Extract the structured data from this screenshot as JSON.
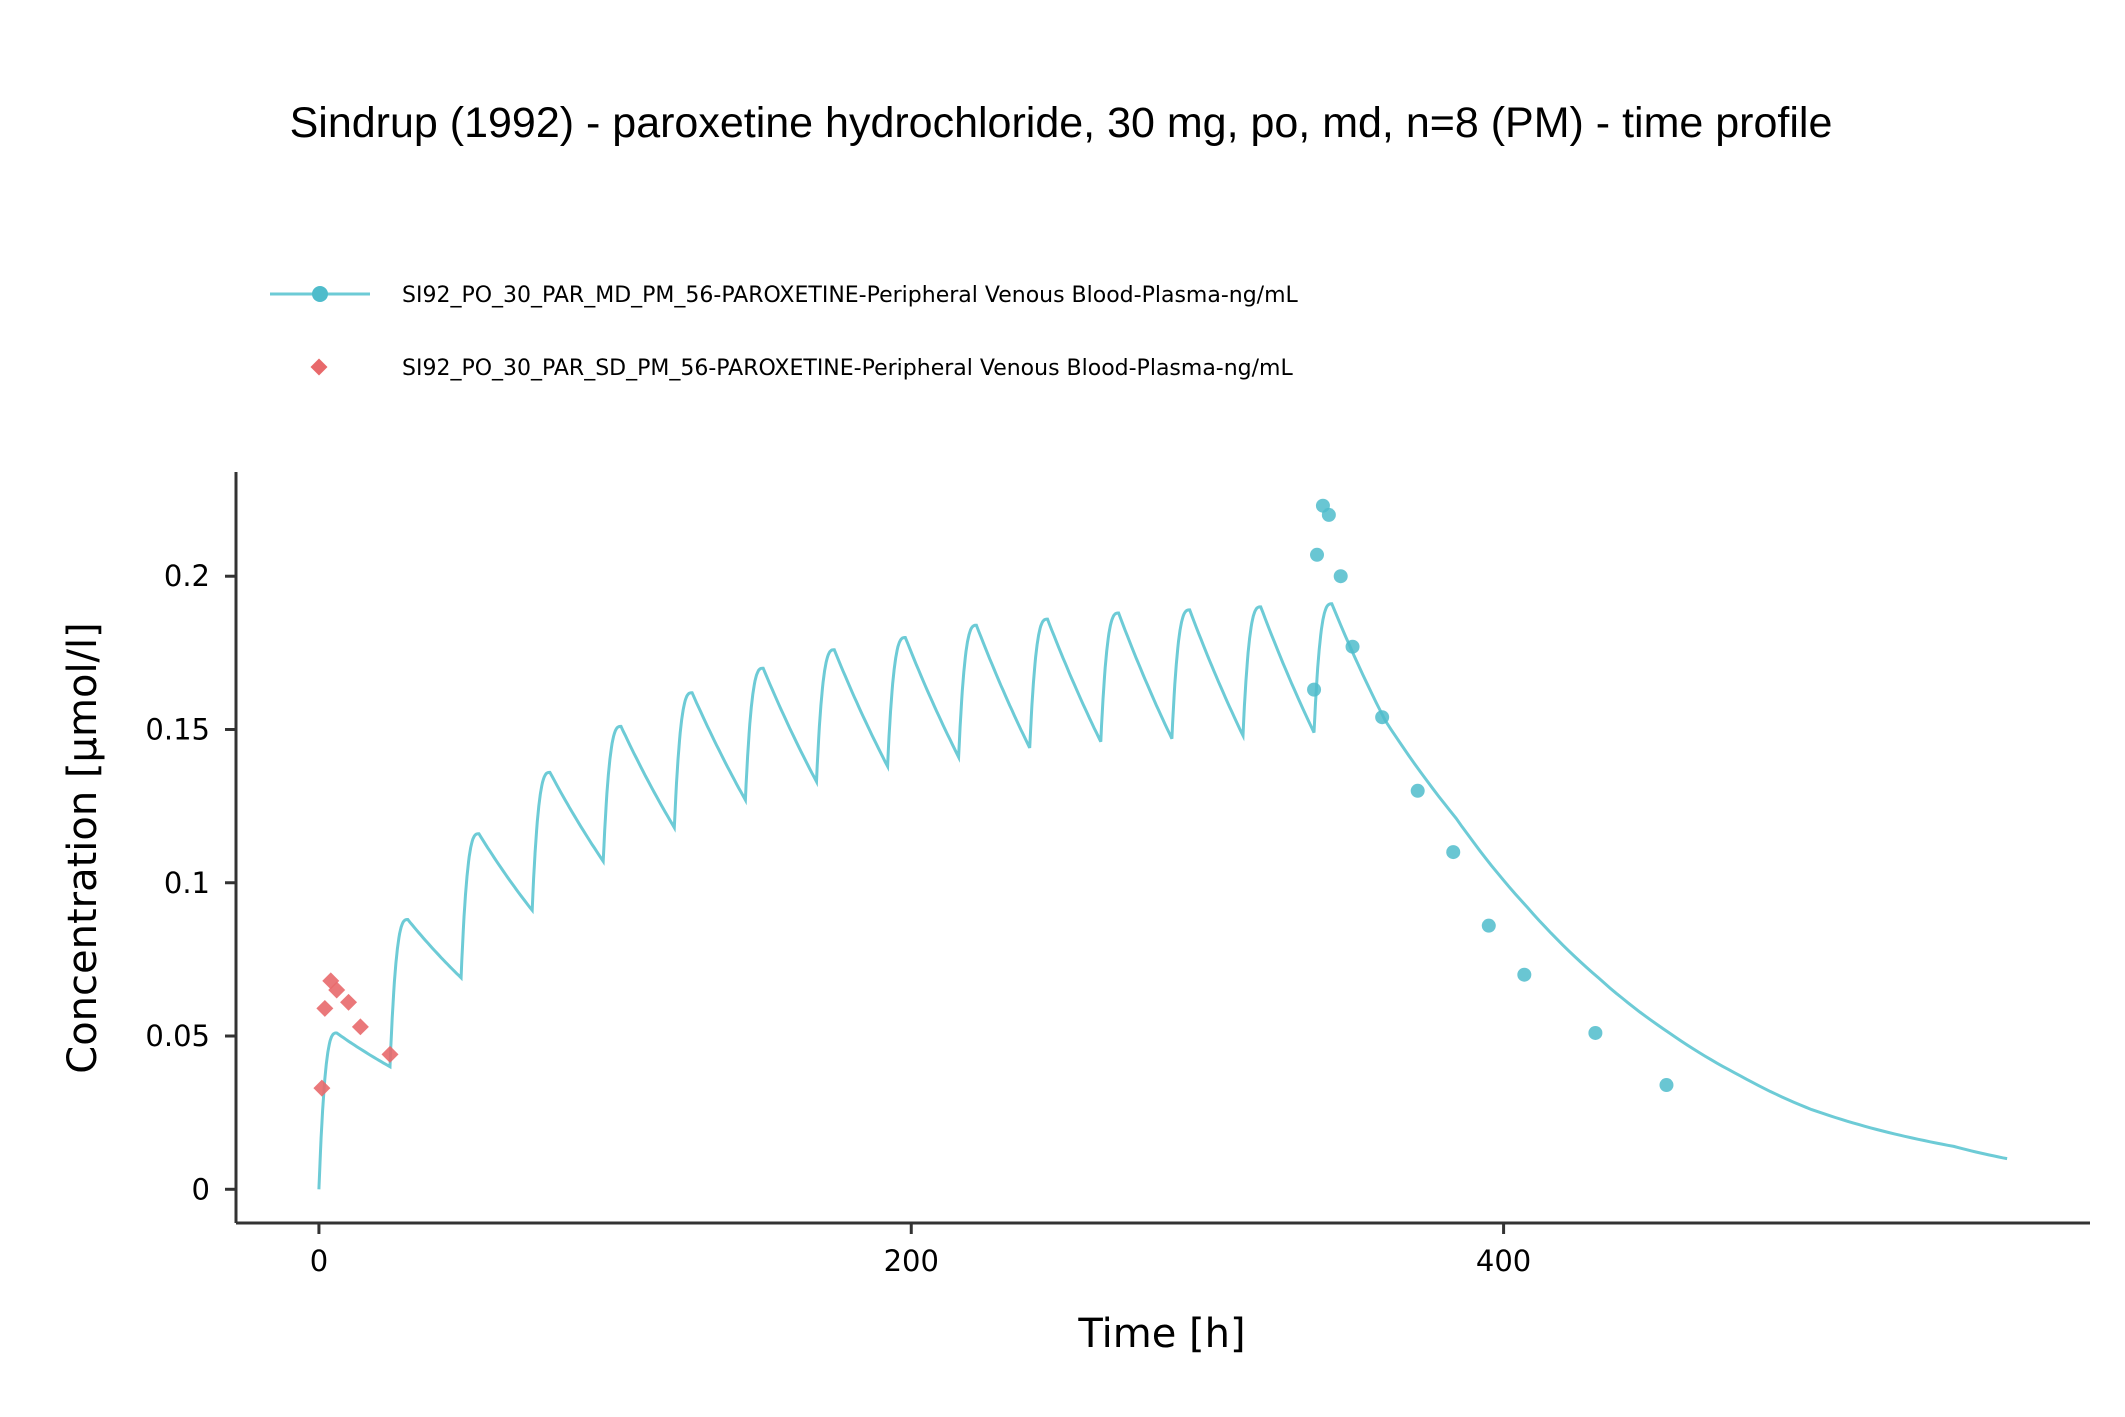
{
  "chart_data": {
    "type": "line",
    "title": "Sindrup (1992) - paroxetine hydrochloride, 30 mg, po, md, n=8 (PM) - time profile",
    "xlabel": "Time [h]",
    "ylabel": "Concentration [µmol/l]",
    "xlim": [
      -28,
      598
    ],
    "ylim": [
      -0.011,
      0.234
    ],
    "xticks": [
      0,
      200,
      400
    ],
    "xtick_labels": [
      "0",
      "200",
      "400"
    ],
    "yticks": [
      0,
      0.05,
      0.1,
      0.15,
      0.2
    ],
    "ytick_labels": [
      "0",
      "0.05",
      "0.1",
      "0.15",
      "0.2"
    ],
    "grid": false,
    "legend_position": "top-left",
    "colors": {
      "md": "#6DCBD6",
      "md_marker": "#4FBCCB",
      "sd": "#E8696B"
    },
    "series": [
      {
        "name": "SI92_PO_30_PAR_MD_PM_56-PAROXETINE-Peripheral Venous Blood-Plasma-ng/mL",
        "kind": "observed",
        "marker": "circle",
        "x": [
          336,
          337,
          339,
          341,
          345,
          349,
          359,
          371,
          383,
          395,
          407,
          431,
          455
        ],
        "y": [
          0.163,
          0.207,
          0.223,
          0.22,
          0.2,
          0.177,
          0.154,
          0.13,
          0.11,
          0.086,
          0.07,
          0.051,
          0.034
        ]
      },
      {
        "name": "SI92_PO_30_PAR_SD_PM_56-PAROXETINE-Peripheral Venous Blood-Plasma-ng/mL",
        "kind": "observed",
        "marker": "diamond",
        "x": [
          1,
          2,
          4,
          6,
          10,
          14,
          24
        ],
        "y": [
          0.033,
          0.059,
          0.068,
          0.065,
          0.061,
          0.053,
          0.044
        ]
      },
      {
        "kind": "simulated",
        "dosing_interval_h": 24,
        "doses": 15,
        "peaks": [
          0.051,
          0.088,
          0.116,
          0.136,
          0.151,
          0.162,
          0.17,
          0.176,
          0.18,
          0.184,
          0.186,
          0.188,
          0.189,
          0.19,
          0.191
        ],
        "troughs": [
          0.04,
          0.069,
          0.091,
          0.107,
          0.118,
          0.127,
          0.133,
          0.138,
          0.141,
          0.144,
          0.146,
          0.147,
          0.148,
          0.149
        ],
        "terminal_x": [
          360,
          384,
          408,
          432,
          456,
          480,
          504,
          528,
          552,
          570
        ],
        "terminal_y": [
          0.153,
          0.121,
          0.092,
          0.069,
          0.051,
          0.037,
          0.026,
          0.019,
          0.014,
          0.01
        ]
      }
    ]
  }
}
